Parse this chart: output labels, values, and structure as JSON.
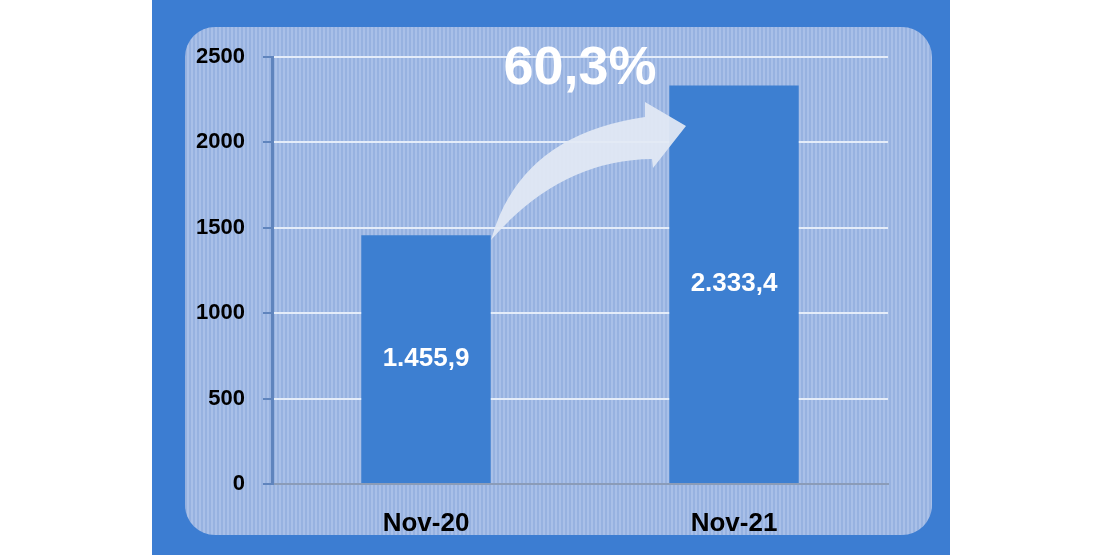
{
  "chart_data": {
    "type": "bar",
    "categories": [
      "Nov-20",
      "Nov-21"
    ],
    "values": [
      1455.9,
      2333.4
    ],
    "color": "#3d7fd1",
    "value_labels": [
      "1.455,9",
      "2.333,4"
    ],
    "ylim": [
      0,
      2500
    ],
    "yticks": [
      0,
      500,
      1000,
      1500,
      2000,
      2500
    ],
    "grid": "y",
    "annotations": [
      "60,3%"
    ]
  }
}
